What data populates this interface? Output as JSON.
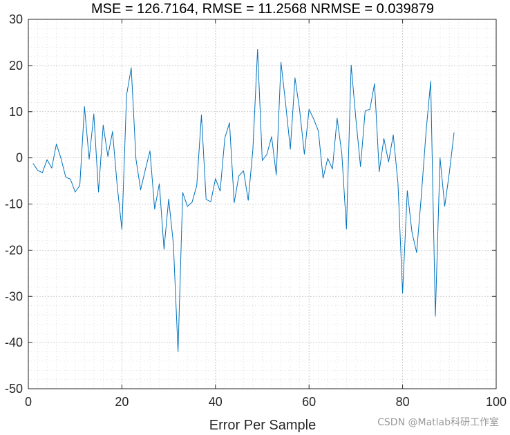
{
  "chart_data": {
    "type": "line",
    "title": "MSE = 126.7164, RMSE = 11.2568 NRMSE = 0.039879",
    "xlabel": "Error Per Sample",
    "ylabel": "",
    "xlim": [
      0,
      100
    ],
    "ylim": [
      -50,
      30
    ],
    "xticks": [
      0,
      20,
      40,
      60,
      80,
      100
    ],
    "yticks": [
      -50,
      -40,
      -30,
      -20,
      -10,
      0,
      10,
      20,
      30
    ],
    "grid": true,
    "minor_grid": true,
    "line_color": "#0072bd",
    "series": [
      {
        "x": [
          1,
          2,
          3,
          4,
          5,
          6,
          7,
          8,
          9,
          10,
          11,
          12,
          13,
          14,
          15,
          16,
          17,
          18,
          19,
          20,
          21,
          22,
          23,
          24,
          25,
          26,
          27,
          28,
          29,
          30,
          31,
          32,
          33,
          34,
          35,
          36,
          37,
          38,
          39,
          40,
          41,
          42,
          43,
          44,
          45,
          46,
          47,
          48,
          49,
          50,
          51,
          52,
          53,
          54,
          55,
          56,
          57,
          58,
          59,
          60,
          61,
          62,
          63,
          64,
          65,
          66,
          67,
          68,
          69,
          70,
          71,
          72,
          73,
          74,
          75,
          76,
          77,
          78,
          79,
          80,
          81,
          82,
          83,
          84,
          85,
          86,
          87,
          88,
          89,
          90,
          91
        ],
        "values": [
          -1.2,
          -2.7,
          -3.2,
          -0.4,
          -2.2,
          3.0,
          -0.2,
          -4.2,
          -4.6,
          -7.4,
          -6.0,
          11.1,
          -0.3,
          9.5,
          -7.4,
          7.1,
          0.3,
          5.7,
          -6.1,
          -15.5,
          13.6,
          19.5,
          -0.2,
          -6.9,
          -2.6,
          1.5,
          -11.1,
          -5.6,
          -19.8,
          -8.9,
          -18.6,
          -42.0,
          -7.5,
          -10.5,
          -9.6,
          -6.0,
          9.3,
          -9.0,
          -9.5,
          -4.5,
          -7.2,
          4.3,
          7.6,
          -9.7,
          -3.9,
          -2.8,
          -9.2,
          1.9,
          23.5,
          -0.6,
          0.8,
          4.6,
          -3.7,
          20.7,
          11.7,
          1.9,
          17.3,
          10.3,
          0.8,
          10.5,
          8.4,
          5.8,
          -4.4,
          -0.1,
          -2.4,
          8.6,
          1.0,
          -15.4,
          20.1,
          8.6,
          -1.9,
          10.2,
          10.5,
          16.1,
          -3.0,
          4.2,
          -0.9,
          5.0,
          -5.4,
          -29.3,
          -7.1,
          -16.1,
          -20.5,
          -8.2,
          5.5,
          16.6,
          -34.3,
          0.0,
          -10.5,
          -3.1,
          5.5
        ]
      }
    ]
  },
  "watermark": "CSDN @Matlab科研工作室"
}
